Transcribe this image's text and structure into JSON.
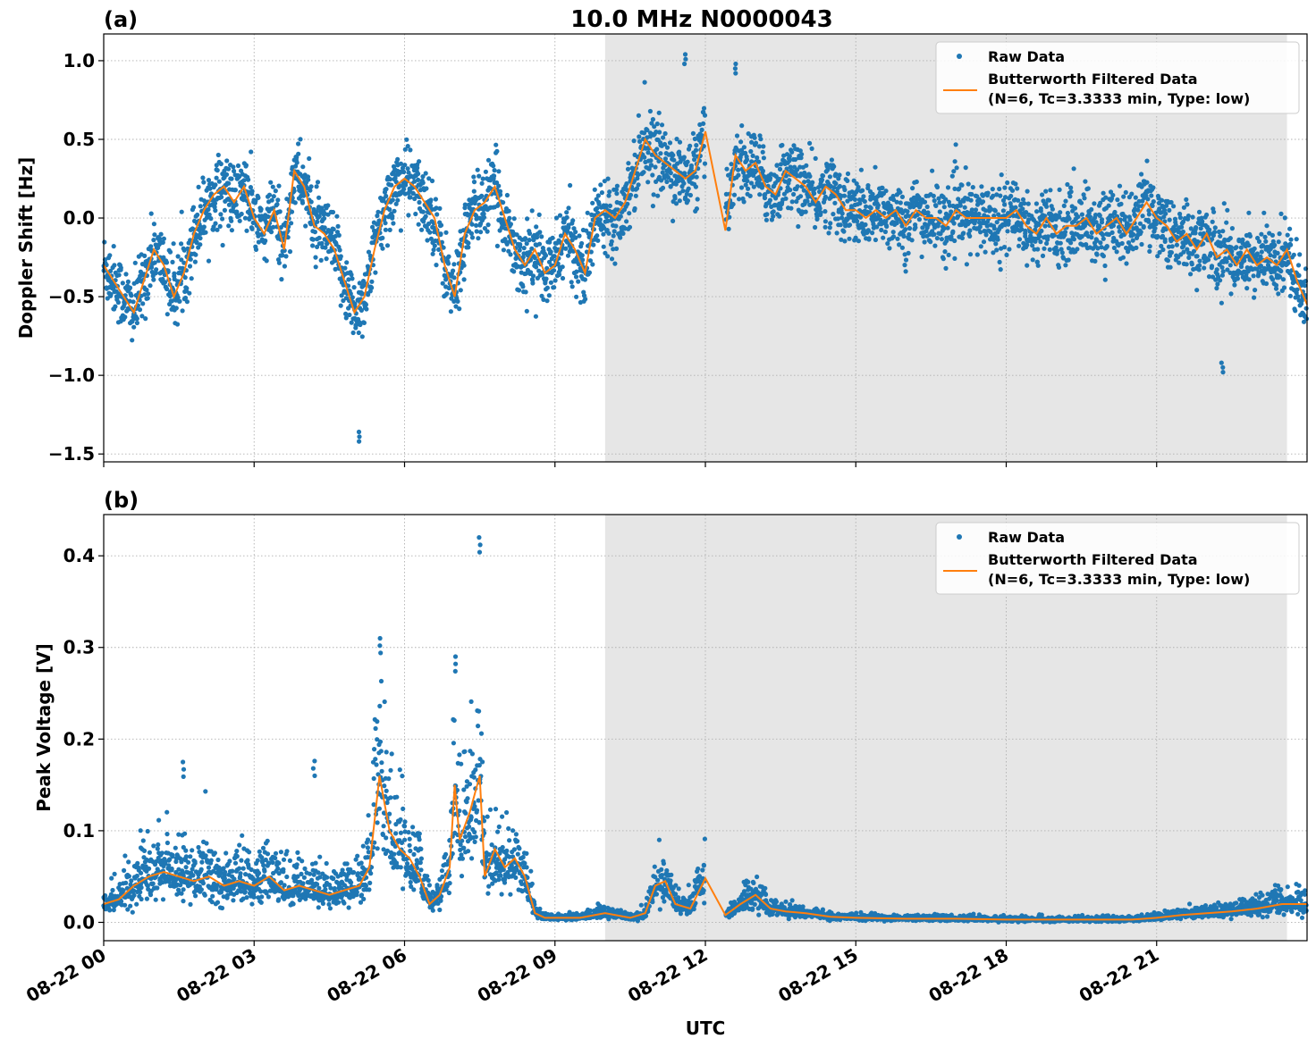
{
  "figure": {
    "title": "10.0 MHz N0000043",
    "xlabel": "UTC"
  },
  "colors": {
    "raw": "#1f77b4",
    "filtered": "#ff7f0e",
    "shade": "#e6e6e6",
    "grid": "#b0b0b0"
  },
  "legend": {
    "raw_label": "Raw Data",
    "filtered_label_line1": "Butterworth Filtered Data",
    "filtered_label_line2": "(N=6, Tc=3.3333 min, Type: low)",
    "placement": "upper right"
  },
  "chart_data": [
    {
      "type": "scatter",
      "panel_label": "(a)",
      "ylabel": "Doppler Shift [Hz]",
      "x_unit": "hours after 08-22 00:00 UTC",
      "xlim": [
        0,
        24
      ],
      "ylim": [
        -1.55,
        1.17
      ],
      "yticks": [
        -1.5,
        -1.0,
        -0.5,
        0.0,
        0.5,
        1.0
      ],
      "ytick_labels": [
        "−1.5",
        "−1.0",
        "−0.5",
        "0.0",
        "0.5",
        "1.0"
      ],
      "xticks": [
        0,
        3,
        6,
        9,
        12,
        15,
        18,
        21
      ],
      "xtick_labels": [
        "08-22 00",
        "08-22 03",
        "08-22 06",
        "08-22 09",
        "08-22 12",
        "08-22 15",
        "08-22 18",
        "08-22 21"
      ],
      "grid": true,
      "shaded_x_range": [
        10,
        23.6
      ],
      "gap_x_range": [
        12.0,
        12.4
      ],
      "series": [
        {
          "name": "Butterworth Filtered Data",
          "style": "line",
          "x": [
            0,
            0.2,
            0.4,
            0.6,
            0.8,
            1.0,
            1.2,
            1.4,
            1.6,
            1.8,
            2.0,
            2.2,
            2.4,
            2.6,
            2.8,
            3.0,
            3.2,
            3.4,
            3.6,
            3.8,
            4.0,
            4.2,
            4.4,
            4.6,
            4.8,
            5.0,
            5.2,
            5.4,
            5.6,
            5.8,
            6.0,
            6.2,
            6.4,
            6.6,
            6.8,
            7.0,
            7.2,
            7.4,
            7.6,
            7.8,
            8.0,
            8.2,
            8.4,
            8.6,
            8.8,
            9.0,
            9.2,
            9.4,
            9.6,
            9.8,
            10.0,
            10.2,
            10.4,
            10.6,
            10.8,
            11.0,
            11.2,
            11.4,
            11.6,
            11.8,
            12.0,
            12.4,
            12.6,
            12.8,
            13.0,
            13.2,
            13.4,
            13.6,
            13.8,
            14.0,
            14.2,
            14.4,
            14.6,
            14.8,
            15.0,
            15.2,
            15.4,
            15.6,
            15.8,
            16.0,
            16.2,
            16.4,
            16.6,
            16.8,
            17.0,
            17.2,
            17.4,
            17.6,
            17.8,
            18.0,
            18.2,
            18.4,
            18.6,
            18.8,
            19.0,
            19.2,
            19.4,
            19.6,
            19.8,
            20.0,
            20.2,
            20.4,
            20.6,
            20.8,
            21.0,
            21.2,
            21.4,
            21.6,
            21.8,
            22.0,
            22.2,
            22.4,
            22.6,
            22.8,
            23.0,
            23.2,
            23.4,
            23.6,
            23.8,
            24.0
          ],
          "y": [
            -0.3,
            -0.4,
            -0.5,
            -0.6,
            -0.4,
            -0.2,
            -0.3,
            -0.5,
            -0.35,
            -0.1,
            0.05,
            0.15,
            0.2,
            0.1,
            0.2,
            0.0,
            -0.1,
            0.05,
            -0.2,
            0.3,
            0.2,
            -0.05,
            -0.1,
            -0.2,
            -0.4,
            -0.6,
            -0.5,
            -0.2,
            0.05,
            0.2,
            0.25,
            0.2,
            0.1,
            0.0,
            -0.3,
            -0.5,
            -0.1,
            0.05,
            0.1,
            0.2,
            0.0,
            -0.2,
            -0.3,
            -0.2,
            -0.35,
            -0.3,
            -0.1,
            -0.2,
            -0.35,
            0.0,
            0.05,
            0.0,
            0.1,
            0.3,
            0.5,
            0.4,
            0.35,
            0.3,
            0.25,
            0.3,
            0.55,
            -0.08,
            0.4,
            0.3,
            0.35,
            0.2,
            0.15,
            0.3,
            0.25,
            0.2,
            0.1,
            0.2,
            0.15,
            0.05,
            0.05,
            0.0,
            0.05,
            0.0,
            0.05,
            -0.05,
            0.05,
            0.0,
            0.0,
            -0.05,
            0.05,
            0.0,
            0.0,
            0.0,
            0.0,
            0.0,
            0.05,
            -0.05,
            -0.1,
            0.0,
            -0.1,
            -0.05,
            -0.05,
            0.0,
            -0.1,
            -0.05,
            0.0,
            -0.1,
            0.0,
            0.1,
            0.0,
            -0.05,
            -0.15,
            -0.1,
            -0.2,
            -0.1,
            -0.25,
            -0.2,
            -0.3,
            -0.2,
            -0.3,
            -0.25,
            -0.3,
            -0.2,
            -0.4,
            -0.55
          ]
        },
        {
          "name": "Raw Data",
          "style": "points",
          "description_of_spread_hz": 0.25,
          "extreme_points": [
            [
              5.1,
              -1.42
            ],
            [
              11.6,
              1.04
            ],
            [
              12.6,
              0.98
            ],
            [
              22.3,
              -0.98
            ]
          ]
        }
      ]
    },
    {
      "type": "scatter",
      "panel_label": "(b)",
      "ylabel": "Peak Voltage [V]",
      "x_unit": "hours after 08-22 00:00 UTC",
      "xlim": [
        0,
        24
      ],
      "ylim": [
        -0.02,
        0.445
      ],
      "yticks": [
        0.0,
        0.1,
        0.2,
        0.3,
        0.4
      ],
      "ytick_labels": [
        "0.0",
        "0.1",
        "0.2",
        "0.3",
        "0.4"
      ],
      "xticks": [
        0,
        3,
        6,
        9,
        12,
        15,
        18,
        21
      ],
      "xtick_labels": [
        "08-22 00",
        "08-22 03",
        "08-22 06",
        "08-22 09",
        "08-22 12",
        "08-22 15",
        "08-22 18",
        "08-22 21"
      ],
      "grid": true,
      "shaded_x_range": [
        10,
        23.6
      ],
      "gap_x_range": [
        12.0,
        12.4
      ],
      "series": [
        {
          "name": "Butterworth Filtered Data",
          "style": "line",
          "x": [
            0,
            0.3,
            0.6,
            0.9,
            1.2,
            1.5,
            1.8,
            2.1,
            2.4,
            2.7,
            3.0,
            3.3,
            3.6,
            3.9,
            4.2,
            4.5,
            4.8,
            5.1,
            5.3,
            5.5,
            5.7,
            5.9,
            6.1,
            6.3,
            6.5,
            6.7,
            6.9,
            7.0,
            7.1,
            7.3,
            7.5,
            7.6,
            7.8,
            8.0,
            8.2,
            8.4,
            8.6,
            8.8,
            9.0,
            9.5,
            10.0,
            10.5,
            10.8,
            11.0,
            11.2,
            11.4,
            11.7,
            12.0,
            12.4,
            12.7,
            13.0,
            13.3,
            13.6,
            14.0,
            14.5,
            15.0,
            16.0,
            17.0,
            18.0,
            19.0,
            20.0,
            20.5,
            21.0,
            21.5,
            22.0,
            22.5,
            23.0,
            23.5,
            24.0
          ],
          "y": [
            0.02,
            0.025,
            0.04,
            0.05,
            0.055,
            0.05,
            0.045,
            0.05,
            0.04,
            0.045,
            0.04,
            0.05,
            0.035,
            0.04,
            0.035,
            0.03,
            0.035,
            0.04,
            0.06,
            0.16,
            0.1,
            0.08,
            0.07,
            0.05,
            0.02,
            0.03,
            0.06,
            0.15,
            0.09,
            0.12,
            0.16,
            0.05,
            0.08,
            0.06,
            0.07,
            0.05,
            0.01,
            0.005,
            0.005,
            0.005,
            0.01,
            0.005,
            0.01,
            0.04,
            0.045,
            0.02,
            0.015,
            0.048,
            0.008,
            0.02,
            0.03,
            0.015,
            0.012,
            0.01,
            0.006,
            0.005,
            0.004,
            0.004,
            0.003,
            0.003,
            0.003,
            0.003,
            0.005,
            0.008,
            0.01,
            0.012,
            0.015,
            0.02,
            0.02
          ]
        },
        {
          "name": "Raw Data",
          "style": "points",
          "extreme_points": [
            [
              5.5,
              0.31
            ],
            [
              7.0,
              0.29
            ],
            [
              7.5,
              0.42
            ],
            [
              1.6,
              0.175
            ],
            [
              4.2,
              0.176
            ]
          ]
        }
      ]
    }
  ]
}
